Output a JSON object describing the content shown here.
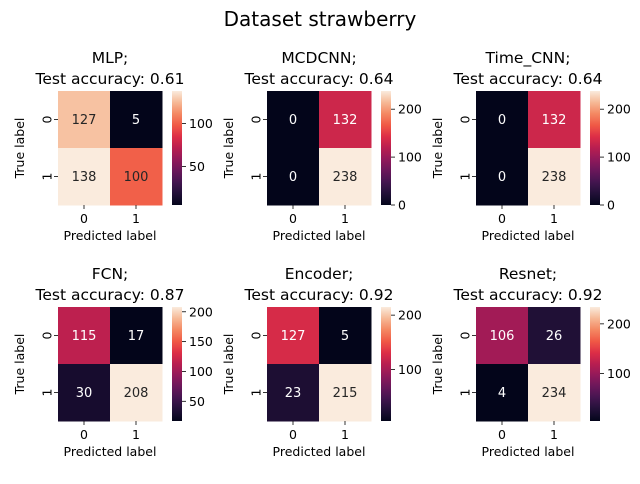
{
  "figure_title": "Dataset strawberry",
  "chart_data": [
    {
      "type": "heatmap",
      "title": "MLP;\nTest accuracy: 0.61",
      "xlabel": "Predicted label",
      "ylabel": "True label",
      "x_ticks": [
        "0",
        "1"
      ],
      "y_ticks": [
        "0",
        "1"
      ],
      "matrix": [
        [
          127,
          5
        ],
        [
          138,
          100
        ]
      ],
      "colorbar": {
        "vmin": 5,
        "vmax": 138,
        "ticks": [
          50,
          100
        ]
      }
    },
    {
      "type": "heatmap",
      "title": "MCDCNN;\nTest accuracy: 0.64",
      "xlabel": "Predicted label",
      "ylabel": "True label",
      "x_ticks": [
        "0",
        "1"
      ],
      "y_ticks": [
        "0",
        "1"
      ],
      "matrix": [
        [
          0,
          132
        ],
        [
          0,
          238
        ]
      ],
      "colorbar": {
        "vmin": 0,
        "vmax": 238,
        "ticks": [
          0,
          100,
          200
        ]
      }
    },
    {
      "type": "heatmap",
      "title": "Time_CNN;\nTest accuracy: 0.64",
      "xlabel": "Predicted label",
      "ylabel": "True label",
      "x_ticks": [
        "0",
        "1"
      ],
      "y_ticks": [
        "0",
        "1"
      ],
      "matrix": [
        [
          0,
          132
        ],
        [
          0,
          238
        ]
      ],
      "colorbar": {
        "vmin": 0,
        "vmax": 238,
        "ticks": [
          0,
          100,
          200
        ]
      }
    },
    {
      "type": "heatmap",
      "title": "FCN;\nTest accuracy: 0.87",
      "xlabel": "Predicted label",
      "ylabel": "True label",
      "x_ticks": [
        "0",
        "1"
      ],
      "y_ticks": [
        "0",
        "1"
      ],
      "matrix": [
        [
          115,
          17
        ],
        [
          30,
          208
        ]
      ],
      "colorbar": {
        "vmin": 17,
        "vmax": 208,
        "ticks": [
          50,
          100,
          150,
          200
        ]
      }
    },
    {
      "type": "heatmap",
      "title": "Encoder;\nTest accuracy: 0.92",
      "xlabel": "Predicted label",
      "ylabel": "True label",
      "x_ticks": [
        "0",
        "1"
      ],
      "y_ticks": [
        "0",
        "1"
      ],
      "matrix": [
        [
          127,
          5
        ],
        [
          23,
          215
        ]
      ],
      "colorbar": {
        "vmin": 5,
        "vmax": 215,
        "ticks": [
          100,
          200
        ]
      }
    },
    {
      "type": "heatmap",
      "title": "Resnet;\nTest accuracy: 0.92",
      "xlabel": "Predicted label",
      "ylabel": "True label",
      "x_ticks": [
        "0",
        "1"
      ],
      "y_ticks": [
        "0",
        "1"
      ],
      "matrix": [
        [
          106,
          26
        ],
        [
          4,
          234
        ]
      ],
      "colorbar": {
        "vmin": 4,
        "vmax": 234,
        "ticks": [
          100,
          200
        ]
      }
    }
  ]
}
